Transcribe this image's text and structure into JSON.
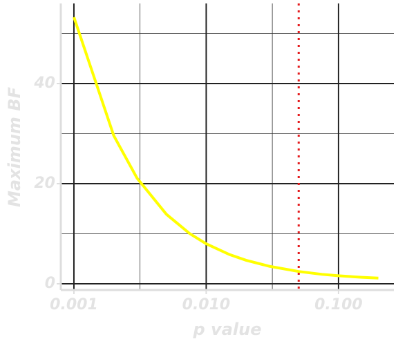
{
  "chart_data": {
    "type": "line",
    "xlabel": "p value",
    "ylabel": "Maximum BF",
    "x": [
      0.001,
      0.002,
      0.003,
      0.005,
      0.0075,
      0.01,
      0.015,
      0.02,
      0.03,
      0.05,
      0.075,
      0.1,
      0.15,
      0.2
    ],
    "series": [
      {
        "color": "#ffff00",
        "values": [
          53.26,
          29.6,
          21.11,
          13.89,
          10.03,
          7.99,
          5.84,
          4.7,
          3.5,
          2.46,
          1.89,
          1.6,
          1.29,
          1.14
        ]
      }
    ],
    "xscale": "log",
    "xlim": [
      0.000796,
      0.262
    ],
    "ylim": [
      -1.24,
      56
    ],
    "xticks": [
      0.001,
      {
        "value": 0.01,
        "label": "0.010"
      },
      {
        "value": 0.1,
        "label": "0.100"
      }
    ],
    "yticks": [
      0,
      20,
      40
    ],
    "x_minor_grid": [
      0.00316,
      0.0316
    ],
    "y_minor_grid": [
      10,
      30,
      50
    ],
    "grid": true,
    "vline": {
      "value": 0.05,
      "color": "#e41a1c"
    }
  }
}
